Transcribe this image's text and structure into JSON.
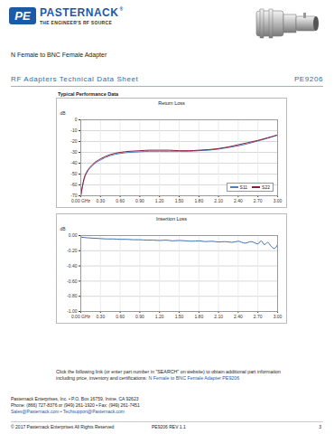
{
  "header": {
    "logo_mark": "PE",
    "logo_name": "PASTERNACK",
    "logo_registered": "®",
    "tagline": "THE ENGINEER'S RF SOURCE",
    "product": "N Female to BNC Female Adapter",
    "sheet_title": "RF Adapters Technical Data Sheet",
    "part_number": "PE9206"
  },
  "section_title": "Typical Performance Data",
  "chart_data": [
    {
      "type": "line",
      "title": "Return Loss",
      "y_label": "dB",
      "x": [
        0,
        0.05,
        0.1,
        0.15,
        0.2,
        0.3,
        0.45,
        0.6,
        0.75,
        0.9,
        1.05,
        1.2,
        1.35,
        1.5,
        1.65,
        1.8,
        1.95,
        2.1,
        2.25,
        2.4,
        2.55,
        2.7,
        2.85,
        3.0
      ],
      "series": [
        {
          "name": "S11",
          "color": "#4a7fc1",
          "values": [
            -70,
            -55,
            -48,
            -44,
            -41,
            -37,
            -33,
            -31,
            -30,
            -29.5,
            -29,
            -29,
            -29,
            -29,
            -29,
            -28.5,
            -28,
            -27,
            -25.5,
            -24,
            -22,
            -19.5,
            -17,
            -14
          ]
        },
        {
          "name": "S22",
          "color": "#8b1d3f",
          "values": [
            -70,
            -54,
            -47,
            -43,
            -40,
            -36,
            -32,
            -30,
            -29,
            -28.5,
            -28,
            -28,
            -28,
            -28.5,
            -28.5,
            -28,
            -27.5,
            -26.5,
            -25,
            -23,
            -21,
            -19,
            -16.5,
            -14
          ]
        }
      ],
      "xlim": [
        0,
        3
      ],
      "xticks": [
        {
          "value": 0,
          "label": "0.00 GHz"
        },
        {
          "value": 0.3,
          "label": "0.30"
        },
        {
          "value": 0.6,
          "label": "0.60"
        },
        {
          "value": 0.9,
          "label": "0.90"
        },
        {
          "value": 1.2,
          "label": "1.20"
        },
        {
          "value": 1.5,
          "label": "1.50"
        },
        {
          "value": 1.8,
          "label": "1.80"
        },
        {
          "value": 2.1,
          "label": "2.10"
        },
        {
          "value": 2.4,
          "label": "2.40"
        },
        {
          "value": 2.7,
          "label": "2.70"
        },
        {
          "value": 3,
          "label": "3.00"
        }
      ],
      "ylim": [
        -70,
        0
      ],
      "yticks": [
        0,
        -10,
        -20,
        -30,
        -40,
        -50,
        -60,
        -70
      ],
      "grid": true,
      "legend": "bottom-right"
    },
    {
      "type": "line",
      "title": "Insertion Loss",
      "y_label": "dB",
      "x": [
        0,
        0.1,
        0.2,
        0.3,
        0.4,
        0.5,
        0.6,
        0.7,
        0.8,
        0.9,
        1.0,
        1.1,
        1.2,
        1.3,
        1.4,
        1.5,
        1.6,
        1.7,
        1.8,
        1.9,
        2.0,
        2.1,
        2.2,
        2.3,
        2.4,
        2.5,
        2.6,
        2.7,
        2.75,
        2.8,
        2.85,
        2.9,
        2.95,
        3.0
      ],
      "series": [
        {
          "color": "#3f72b8",
          "values": [
            -0.02,
            -0.03,
            -0.035,
            -0.04,
            -0.045,
            -0.045,
            -0.05,
            -0.05,
            -0.055,
            -0.055,
            -0.06,
            -0.06,
            -0.065,
            -0.06,
            -0.07,
            -0.065,
            -0.07,
            -0.075,
            -0.07,
            -0.08,
            -0.075,
            -0.085,
            -0.08,
            -0.09,
            -0.075,
            -0.1,
            -0.08,
            -0.11,
            -0.07,
            -0.12,
            -0.09,
            -0.14,
            -0.17,
            -0.12
          ]
        }
      ],
      "xlim": [
        0,
        3
      ],
      "xticks": [
        {
          "value": 0,
          "label": "0.00 GHz"
        },
        {
          "value": 0.3,
          "label": "0.30"
        },
        {
          "value": 0.6,
          "label": "0.60"
        },
        {
          "value": 0.9,
          "label": "0.90"
        },
        {
          "value": 1.2,
          "label": "1.20"
        },
        {
          "value": 1.5,
          "label": "1.50"
        },
        {
          "value": 1.8,
          "label": "1.80"
        },
        {
          "value": 2.1,
          "label": "2.10"
        },
        {
          "value": 2.4,
          "label": "2.40"
        },
        {
          "value": 2.7,
          "label": "2.70"
        },
        {
          "value": 3,
          "label": "3.00"
        }
      ],
      "ylim": [
        -1,
        0
      ],
      "yticks": [
        {
          "value": 0,
          "label": "0.00"
        },
        {
          "value": -0.2,
          "label": "-0.20"
        },
        {
          "value": -0.4,
          "label": "-0.40"
        },
        {
          "value": -0.6,
          "label": "-0.60"
        },
        {
          "value": -0.8,
          "label": "-0.80"
        },
        {
          "value": -1,
          "label": "-1.00"
        }
      ],
      "grid": true
    }
  ],
  "footer": {
    "link_intro": "Click the following link (or enter part number in \"SEARCH\" on website) to obtain additional part information including price, inventory and certifications:",
    "link_text": "N Female to BNC Female Adapter PE9206",
    "address": "Pasternack Enterprises, Inc. • P.O. Box 16759, Irvine, CA 92623",
    "phone": "Phone: (866) 727-8376 or (949) 261-1920 • Fax: (949) 261-7451",
    "email": "Sales@Pasternack.com • Techsupport@Pasternack.com",
    "copyright": "© 2017 Pasternack Enterprises All Rights Reserved",
    "revision": "PE9206 REV 1.1",
    "page": "3"
  }
}
